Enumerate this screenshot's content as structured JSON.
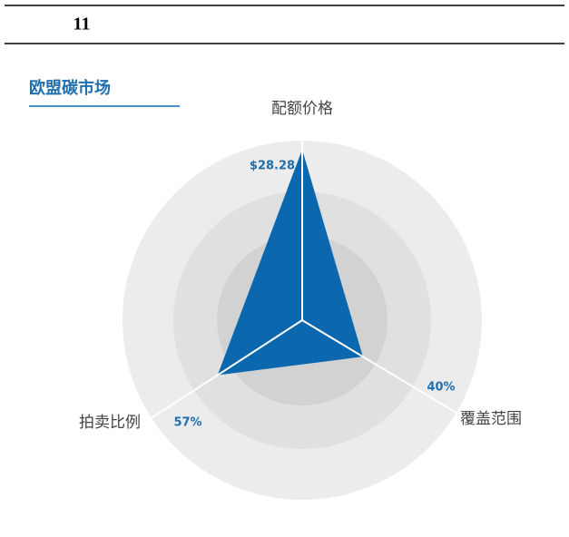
{
  "page_number": "11",
  "chart_data": {
    "type": "radar",
    "title": "欧盟碳市场",
    "categories": [
      "配额价格",
      "覆盖范围",
      "拍卖比例"
    ],
    "values": [
      28.28,
      40,
      57
    ],
    "value_labels": [
      "$28.28",
      "40%",
      "57%"
    ],
    "rlim": [
      [
        0,
        29.3
      ],
      [
        0,
        100
      ],
      [
        0,
        100
      ]
    ],
    "color": "#0b67ae"
  }
}
